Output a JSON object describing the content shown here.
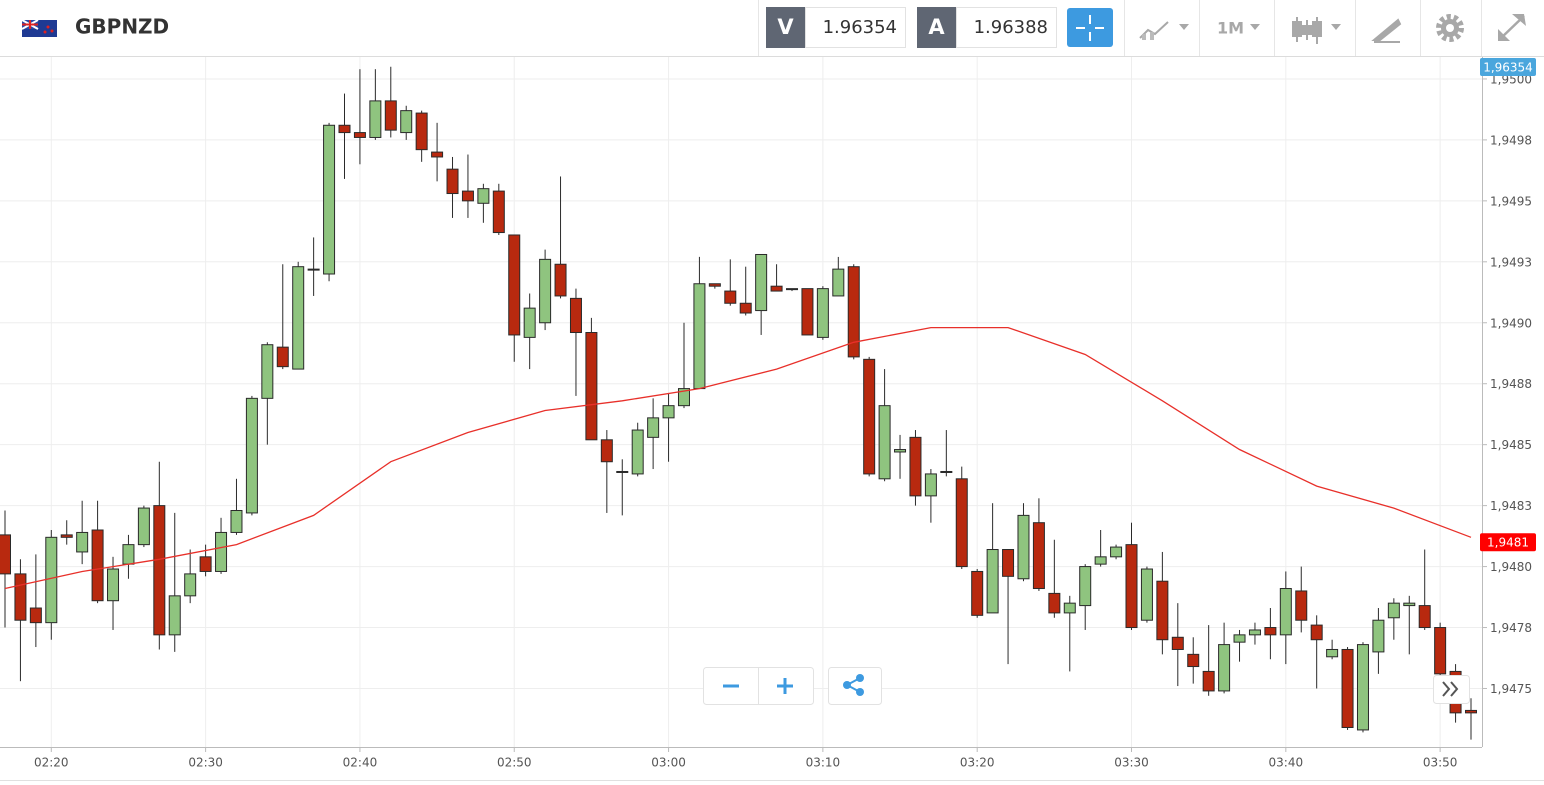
{
  "toolbar": {
    "symbol": "GBPNZD",
    "bid_label": "V",
    "bid": 1.96354,
    "ask_label": "A",
    "ask": 1.96388,
    "timeframe": "1M"
  },
  "chart_data": {
    "type": "candlestick",
    "x": [
      "02:17",
      "02:18",
      "02:19",
      "02:20",
      "02:21",
      "02:22",
      "02:23",
      "02:24",
      "02:25",
      "02:26",
      "02:27",
      "02:28",
      "02:29",
      "02:30",
      "02:31",
      "02:32",
      "02:33",
      "02:34",
      "02:35",
      "02:36",
      "02:37",
      "02:38",
      "02:39",
      "02:40",
      "02:41",
      "02:42",
      "02:43",
      "02:44",
      "02:45",
      "02:46",
      "02:47",
      "02:48",
      "02:49",
      "02:50",
      "02:51",
      "02:52",
      "02:53",
      "02:54",
      "02:55",
      "02:56",
      "02:57",
      "02:58",
      "02:59",
      "03:00",
      "03:01",
      "03:02",
      "03:03",
      "03:04",
      "03:05",
      "03:06",
      "03:07",
      "03:08",
      "03:09",
      "03:10",
      "03:11",
      "03:12",
      "03:13",
      "03:14",
      "03:15",
      "03:16",
      "03:17",
      "03:18",
      "03:19",
      "03:20",
      "03:21",
      "03:22",
      "03:23",
      "03:24",
      "03:25",
      "03:26",
      "03:27",
      "03:28",
      "03:29",
      "03:30",
      "03:31",
      "03:32",
      "03:33",
      "03:34",
      "03:35",
      "03:36",
      "03:37",
      "03:38",
      "03:39",
      "03:40",
      "03:41",
      "03:42",
      "03:43",
      "03:44",
      "03:45",
      "03:46",
      "03:47",
      "03:48",
      "03:49",
      "03:50",
      "03:51",
      "03:52"
    ],
    "open": [
      1.94813,
      1.94797,
      1.94783,
      1.94777,
      1.94813,
      1.94806,
      1.94815,
      1.94786,
      1.94801,
      1.94809,
      1.94825,
      1.94772,
      1.94788,
      1.94804,
      1.94798,
      1.94814,
      1.94822,
      1.94869,
      1.9489,
      1.94881,
      1.94922,
      1.9492,
      1.94981,
      1.94978,
      1.94976,
      1.94991,
      1.94978,
      1.94986,
      1.9497,
      1.94963,
      1.94954,
      1.94949,
      1.94954,
      1.94936,
      1.94894,
      1.949,
      1.94924,
      1.9491,
      1.94896,
      1.94852,
      1.94839,
      1.94838,
      1.94853,
      1.94861,
      1.94866,
      1.94873,
      1.94916,
      1.94913,
      1.94908,
      1.94905,
      1.94915,
      1.94914,
      1.94914,
      1.94894,
      1.94911,
      1.94923,
      1.94885,
      1.94836,
      1.94847,
      1.94853,
      1.94829,
      1.94839,
      1.94836,
      1.94798,
      1.94781,
      1.94807,
      1.94795,
      1.94818,
      1.94789,
      1.94781,
      1.94784,
      1.94801,
      1.94804,
      1.94809,
      1.94778,
      1.94794,
      1.94771,
      1.94764,
      1.94757,
      1.94749,
      1.94769,
      1.94772,
      1.94775,
      1.94772,
      1.9479,
      1.94776,
      1.94763,
      1.94766,
      1.94733,
      1.94765,
      1.94779,
      1.94784,
      1.94784,
      1.94775,
      1.94757,
      1.94741
    ],
    "high": [
      1.94823,
      1.94803,
      1.94805,
      1.94815,
      1.94819,
      1.94827,
      1.94827,
      1.94804,
      1.94813,
      1.94825,
      1.94843,
      1.94822,
      1.94807,
      1.94809,
      1.9482,
      1.94836,
      1.9487,
      1.94892,
      1.94924,
      1.94925,
      1.94935,
      1.94982,
      1.94994,
      1.95004,
      1.95004,
      1.95005,
      1.94989,
      1.94987,
      1.94982,
      1.94968,
      1.94969,
      1.94957,
      1.94957,
      1.94936,
      1.94912,
      1.9493,
      1.9496,
      1.94914,
      1.94902,
      1.94856,
      1.94844,
      1.94859,
      1.94869,
      1.94871,
      1.949,
      1.94927,
      1.94916,
      1.94926,
      1.94923,
      1.94928,
      1.94924,
      1.94914,
      1.94914,
      1.94915,
      1.94927,
      1.94924,
      1.94886,
      1.94881,
      1.94854,
      1.94856,
      1.9484,
      1.94856,
      1.94841,
      1.94799,
      1.94826,
      1.94807,
      1.94826,
      1.94828,
      1.94811,
      1.94788,
      1.94801,
      1.94815,
      1.94809,
      1.94818,
      1.948,
      1.94806,
      1.94785,
      1.94771,
      1.94776,
      1.94777,
      1.94774,
      1.94777,
      1.94783,
      1.94798,
      1.948,
      1.9478,
      1.9477,
      1.94767,
      1.94769,
      1.94783,
      1.94787,
      1.94788,
      1.94807,
      1.94777,
      1.9476,
      1.94746
    ],
    "low": [
      1.94775,
      1.94753,
      1.94767,
      1.9477,
      1.94809,
      1.94801,
      1.94785,
      1.94774,
      1.94795,
      1.94808,
      1.94766,
      1.94765,
      1.94785,
      1.94796,
      1.94797,
      1.94813,
      1.94821,
      1.9485,
      1.94881,
      1.94881,
      1.94911,
      1.94917,
      1.94959,
      1.94965,
      1.94975,
      1.94976,
      1.94975,
      1.94966,
      1.94958,
      1.94943,
      1.94943,
      1.94941,
      1.94936,
      1.94884,
      1.94881,
      1.94897,
      1.9491,
      1.9487,
      1.94852,
      1.94822,
      1.94821,
      1.94837,
      1.9484,
      1.94843,
      1.94865,
      1.94873,
      1.94914,
      1.94907,
      1.94903,
      1.94895,
      1.94913,
      1.94913,
      1.94895,
      1.94893,
      1.94911,
      1.94885,
      1.94837,
      1.94835,
      1.94836,
      1.94825,
      1.94818,
      1.94837,
      1.94799,
      1.94779,
      1.94781,
      1.9476,
      1.94794,
      1.9479,
      1.94779,
      1.94757,
      1.94774,
      1.948,
      1.94803,
      1.94774,
      1.94777,
      1.94764,
      1.94751,
      1.94752,
      1.94747,
      1.94748,
      1.94761,
      1.94768,
      1.94762,
      1.9476,
      1.94773,
      1.9475,
      1.94762,
      1.94733,
      1.94732,
      1.94756,
      1.9477,
      1.94764,
      1.94774,
      1.9475,
      1.94736,
      1.94729
    ],
    "close": [
      1.94797,
      1.94778,
      1.94777,
      1.94812,
      1.94812,
      1.94814,
      1.94786,
      1.94799,
      1.94809,
      1.94824,
      1.94772,
      1.94788,
      1.94797,
      1.94798,
      1.94814,
      1.94823,
      1.94869,
      1.94891,
      1.94882,
      1.94923,
      1.94922,
      1.94981,
      1.94978,
      1.94976,
      1.94991,
      1.94979,
      1.94987,
      1.94971,
      1.94968,
      1.94953,
      1.9495,
      1.94955,
      1.94937,
      1.94895,
      1.94906,
      1.94926,
      1.94911,
      1.94896,
      1.94852,
      1.94843,
      1.94839,
      1.94856,
      1.94861,
      1.94866,
      1.94873,
      1.94916,
      1.94915,
      1.94908,
      1.94904,
      1.94928,
      1.94913,
      1.94914,
      1.94895,
      1.94914,
      1.94922,
      1.94886,
      1.94838,
      1.94866,
      1.94848,
      1.94829,
      1.94838,
      1.94839,
      1.948,
      1.9478,
      1.94807,
      1.94796,
      1.94821,
      1.94791,
      1.94781,
      1.94785,
      1.948,
      1.94804,
      1.94808,
      1.94775,
      1.94799,
      1.9477,
      1.94766,
      1.94759,
      1.94749,
      1.94768,
      1.94772,
      1.94774,
      1.94772,
      1.94791,
      1.94778,
      1.9477,
      1.94766,
      1.94734,
      1.94768,
      1.94778,
      1.94785,
      1.94785,
      1.94775,
      1.94756,
      1.9474,
      1.9474
    ],
    "up_color": "#8fc47f",
    "down_color": "#b8290f",
    "line": {
      "x": [
        "02:17",
        "02:22",
        "02:27",
        "02:32",
        "02:37",
        "02:42",
        "02:47",
        "02:52",
        "02:57",
        "03:02",
        "03:07",
        "03:12",
        "03:17",
        "03:22",
        "03:27",
        "03:32",
        "03:37",
        "03:42",
        "03:47",
        "03:52"
      ],
      "values": [
        1.94791,
        1.94798,
        1.94803,
        1.94809,
        1.94821,
        1.94843,
        1.94855,
        1.94864,
        1.94868,
        1.94873,
        1.94881,
        1.94892,
        1.94898,
        1.94898,
        1.94887,
        1.94868,
        1.94848,
        1.94833,
        1.94824,
        1.94812
      ],
      "color": "#e8302a"
    },
    "ylim": [
      1.94726,
      1.95009
    ],
    "yticks": [
      {
        "value": 1.95,
        "label": "1,9500"
      },
      {
        "value": 1.94975,
        "label": "1,9498"
      },
      {
        "value": 1.9495,
        "label": "1,9495"
      },
      {
        "value": 1.94925,
        "label": "1,9493"
      },
      {
        "value": 1.949,
        "label": "1,9490"
      },
      {
        "value": 1.94875,
        "label": "1,9488"
      },
      {
        "value": 1.9485,
        "label": "1,9485"
      },
      {
        "value": 1.94825,
        "label": "1,9483"
      },
      {
        "value": 1.948,
        "label": "1,9480"
      },
      {
        "value": 1.94775,
        "label": "1,9478"
      },
      {
        "value": 1.9475,
        "label": "1,9475"
      }
    ],
    "xticks": [
      "02:20",
      "02:30",
      "02:40",
      "02:50",
      "03:00",
      "03:10",
      "03:20",
      "03:30",
      "03:40",
      "03:50"
    ],
    "grid": true,
    "price_labels": [
      {
        "value": 1.96354,
        "label": "1,96354",
        "color": "#4aa6dd"
      },
      {
        "value": 1.9481,
        "label": "1,9481",
        "color": "#ff0000"
      }
    ]
  }
}
